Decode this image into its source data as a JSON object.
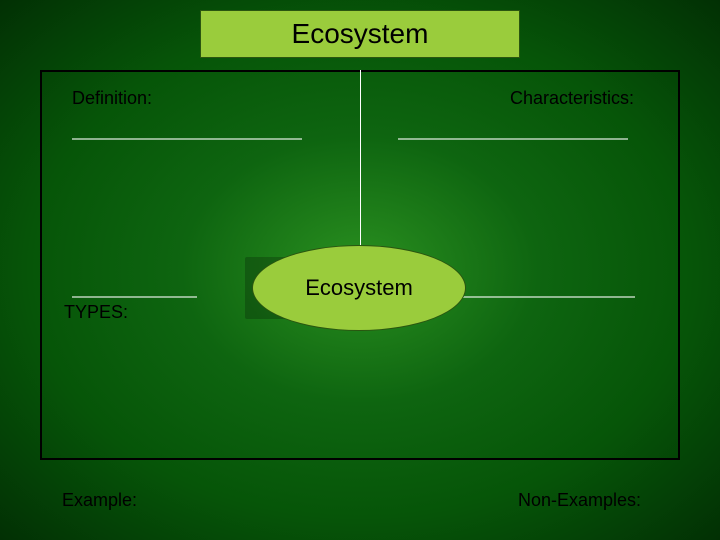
{
  "slide": {
    "title": "Ecosystem",
    "title_box": {
      "bg_color": "#9acc3c",
      "border_color": "#2a5510",
      "text_color": "#000000",
      "font_size_pt": 28
    },
    "background": {
      "type": "radial-gradient",
      "center_color": "#2a9020",
      "mid_color": "#0e6510",
      "outer_color1": "#065508",
      "outer_color2": "#023004"
    },
    "frame": {
      "border_color": "#000000",
      "border_width": 2
    },
    "center_node": {
      "shape": "ellipse",
      "label": "Ecosystem",
      "bg_color": "#9acc3c",
      "border_color": "#2a5510",
      "text_color": "#000000",
      "font_size_pt": 22,
      "shadow_color": "rgba(0,0,0,0.22)"
    },
    "connectors": {
      "color": "#ffffff",
      "underline_color": "rgba(255,255,255,0.55)",
      "underline_thickness": 1.5
    },
    "quadrants": {
      "top_left": {
        "label": "Definition:"
      },
      "top_right": {
        "label": "Characteristics:"
      },
      "mid_left": {
        "label": "TYPES:"
      },
      "bottom_left": {
        "label": "Example:"
      },
      "bottom_right": {
        "label": "Non-Examples:"
      }
    },
    "label_style": {
      "text_color": "#000000",
      "font_size_pt": 18,
      "font_family": "Arial"
    }
  }
}
